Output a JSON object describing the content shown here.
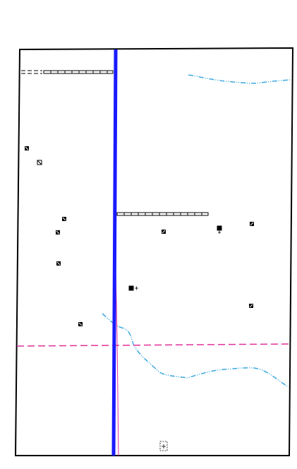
{
  "map": {
    "colors": {
      "frame": "#000000",
      "highway": "#1a1aff",
      "boundary": "#e0309a",
      "stream": "#3aa8e0",
      "railroad": "#000000",
      "building": "#000000",
      "background": "#ffffff"
    },
    "features": {
      "major_road": "blue-highway",
      "boundary_line": "magenta-dashed-boundary",
      "streams": [
        "stream-northeast",
        "stream-south"
      ],
      "railroads": [
        "railroad-northwest",
        "railroad-center"
      ],
      "building_count": 13,
      "benchmark_count": 1
    },
    "icons": {
      "building": "building-icon",
      "benchmark": "benchmark-icon"
    }
  }
}
